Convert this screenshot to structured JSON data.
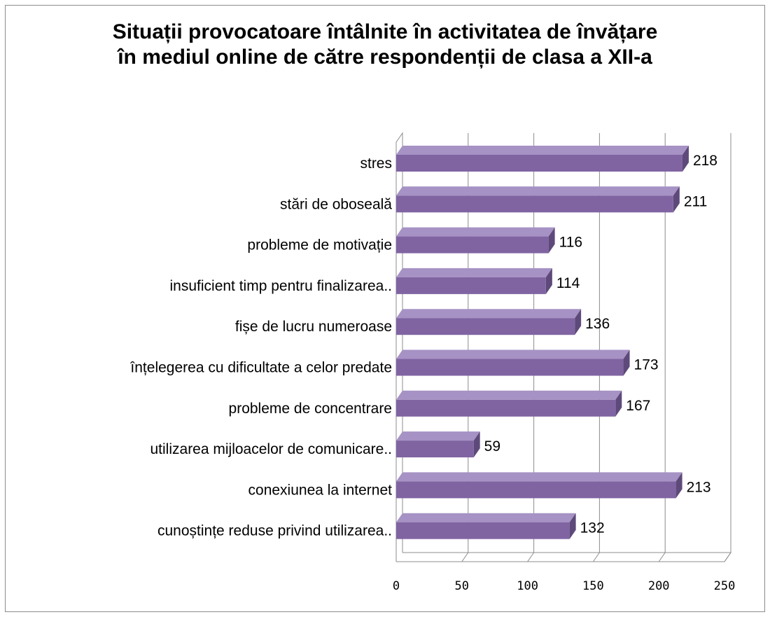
{
  "chart_data": {
    "type": "bar",
    "orientation": "horizontal",
    "style": "3d",
    "title_lines": [
      "Situații provocatoare întâlnite în activitatea de învățare",
      "în mediul online de către respondenții de clasa a XII-a"
    ],
    "xlabel": "",
    "ylabel": "",
    "xlim": [
      0,
      250
    ],
    "xticks": [
      "0",
      "50",
      "100",
      "150",
      "200",
      "250"
    ],
    "grid": true,
    "legend": "none",
    "bar_color": "#8064a2",
    "categories": [
      "stres",
      "stări de oboseală",
      "probleme de motivație",
      "insuficient timp  pentru finalizarea..",
      "fișe de lucru numeroase",
      "înțelegerea cu dificultate a celor predate",
      "probleme de concentrare",
      "utilizarea mijloacelor de comunicare..",
      "conexiunea la internet",
      "cunoștințe reduse privind utilizarea.."
    ],
    "values": [
      218,
      211,
      116,
      114,
      136,
      173,
      167,
      59,
      213,
      132
    ],
    "data_labels": [
      "218",
      "211",
      "116",
      "114",
      "136",
      "173",
      "167",
      "59",
      "213",
      "132"
    ]
  }
}
